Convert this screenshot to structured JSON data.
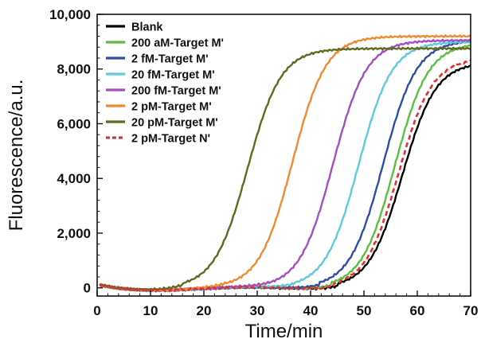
{
  "chart_data": {
    "type": "line",
    "xlabel": "Time/min",
    "ylabel": "Fluorescence/a.u.",
    "xlim": [
      0,
      70
    ],
    "ylim": [
      -300,
      10000
    ],
    "xticks": [
      0,
      10,
      20,
      30,
      40,
      50,
      60,
      70
    ],
    "yticks": [
      0,
      2000,
      4000,
      6000,
      8000,
      10000
    ],
    "xtick_labels": [
      "0",
      "10",
      "20",
      "30",
      "40",
      "50",
      "60",
      "70"
    ],
    "ytick_labels": [
      "0",
      "2,000",
      "4,000",
      "6,000",
      "8,000",
      "10,000"
    ],
    "grid": false,
    "legend_position": "top-left",
    "series": [
      {
        "name": "Blank",
        "color": "#000000",
        "dashed": false,
        "midpoint_min": 57.2,
        "plateau": 8250
      },
      {
        "name": "200 aM-Target M'",
        "color": "#5cbf3f",
        "dashed": false,
        "midpoint_min": 55.8,
        "plateau": 8950
      },
      {
        "name": "2 fM-Target M'",
        "color": "#2f4da8",
        "dashed": false,
        "midpoint_min": 53.6,
        "plateau": 9050
      },
      {
        "name": "20 fM-Target M'",
        "color": "#5ecbdb",
        "dashed": false,
        "midpoint_min": 49.0,
        "plateau": 9000
      },
      {
        "name": "200 fM-Target M'",
        "color": "#a64dbf",
        "dashed": false,
        "midpoint_min": 44.2,
        "plateau": 9050
      },
      {
        "name": "2 pM-Target M'",
        "color": "#f08a30",
        "dashed": false,
        "midpoint_min": 36.6,
        "plateau": 9200
      },
      {
        "name": "20 pM-Target M'",
        "color": "#5e6b1f",
        "dashed": false,
        "midpoint_min": 28.2,
        "plateau": 8750
      },
      {
        "name": "2 pM-Target N'",
        "color": "#e03030",
        "dashed": true,
        "midpoint_min": 56.5,
        "plateau": 8400
      }
    ]
  }
}
